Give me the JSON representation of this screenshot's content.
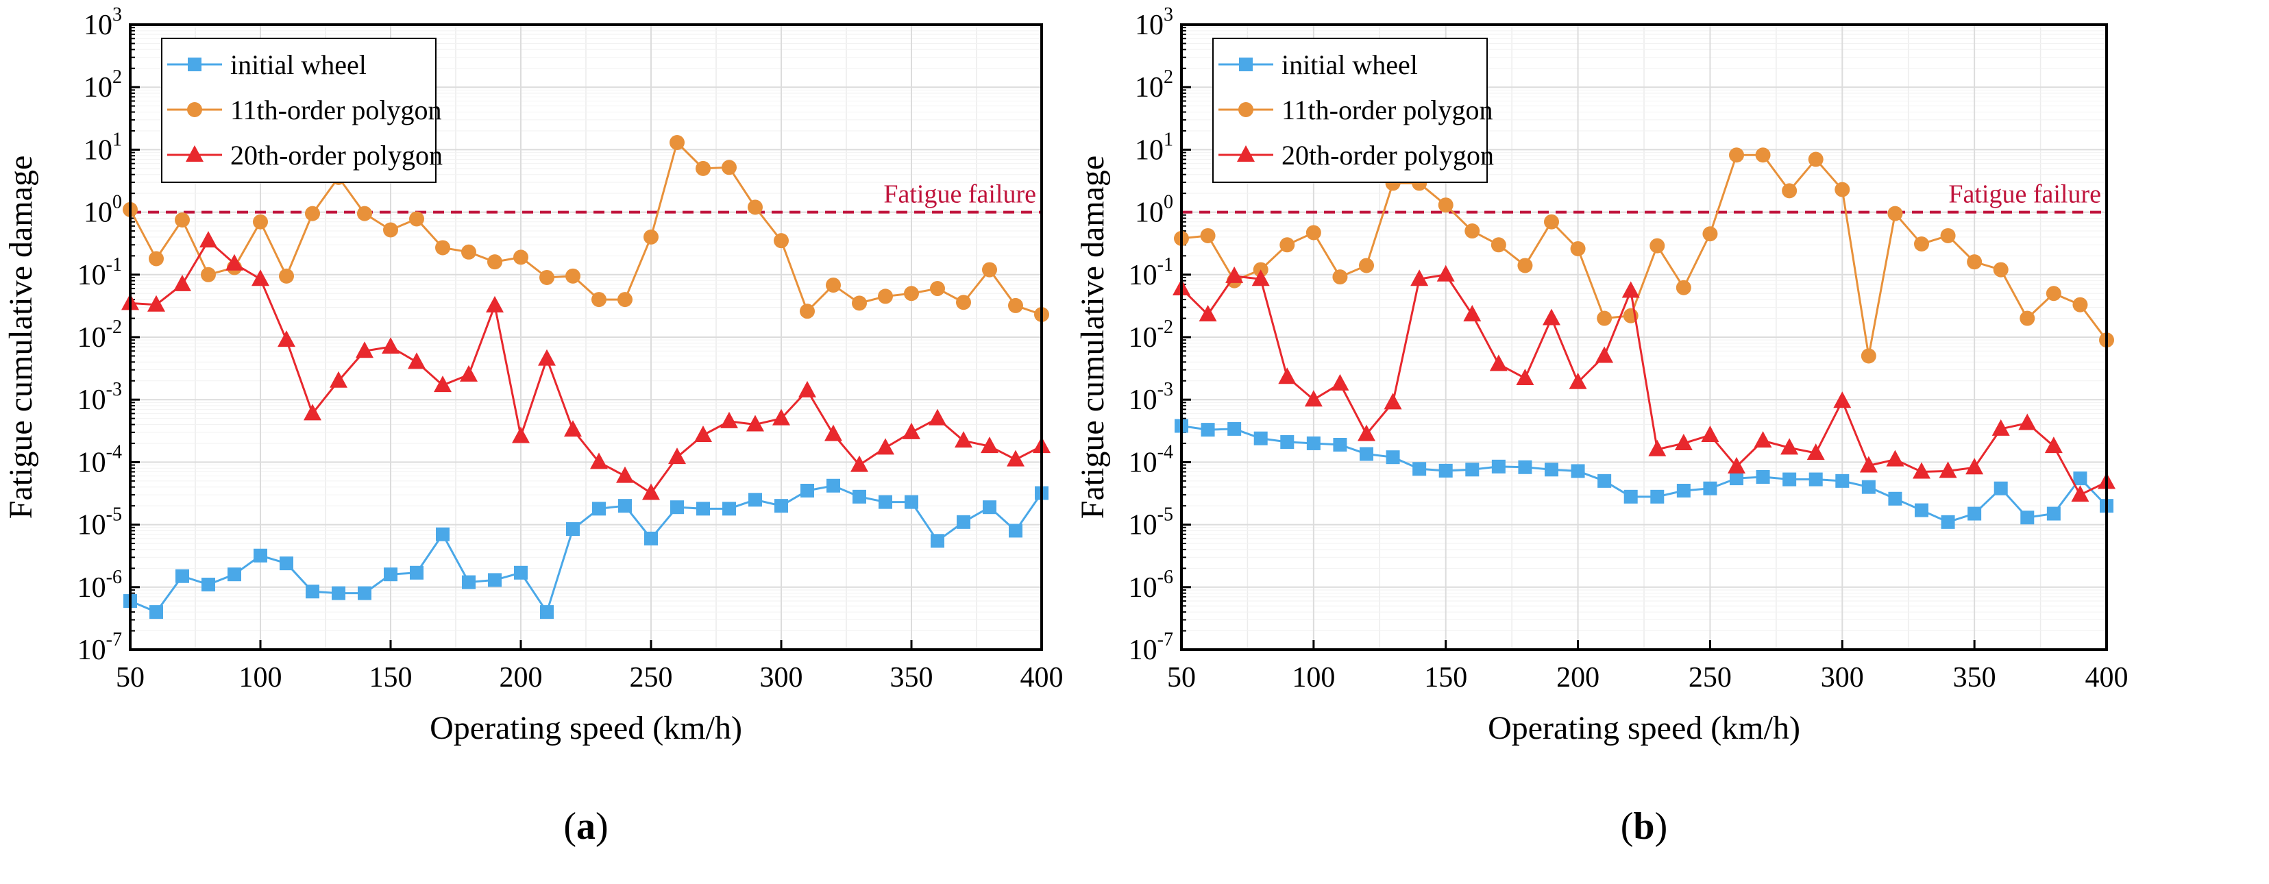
{
  "chart_data": [
    {
      "type": "line",
      "panel_label": "a",
      "xlabel": "Operating speed (km/h)",
      "ylabel": "Fatigue cumulative damage",
      "xlim": [
        50,
        400
      ],
      "ylim": [
        1e-07,
        1000
      ],
      "yscale": "log",
      "grid": true,
      "legend_position": "top-left",
      "x_ticks": [
        50,
        100,
        150,
        200,
        250,
        300,
        350,
        400
      ],
      "y_ticks": [
        -7,
        -6,
        -5,
        -4,
        -3,
        -2,
        -1,
        0,
        1,
        2,
        3
      ],
      "threshold": {
        "value": 1,
        "label": "Fatigue failure",
        "color": "#c0143c"
      },
      "x": [
        50,
        60,
        70,
        80,
        90,
        100,
        110,
        120,
        130,
        140,
        150,
        160,
        170,
        180,
        190,
        200,
        210,
        220,
        230,
        240,
        250,
        260,
        270,
        280,
        290,
        300,
        310,
        320,
        330,
        340,
        350,
        360,
        370,
        380,
        390,
        400
      ],
      "series": [
        {
          "name": "initial wheel",
          "marker": "square",
          "color": "#4aa8e8",
          "values": [
            6e-07,
            4e-07,
            1.5e-06,
            1.1e-06,
            1.6e-06,
            3.2e-06,
            2.4e-06,
            8.5e-07,
            8e-07,
            8e-07,
            1.6e-06,
            1.7e-06,
            7e-06,
            1.2e-06,
            1.3e-06,
            1.7e-06,
            4e-07,
            8.5e-06,
            1.8e-05,
            2e-05,
            6e-06,
            1.9e-05,
            1.8e-05,
            1.8e-05,
            2.5e-05,
            2e-05,
            3.5e-05,
            4.2e-05,
            2.8e-05,
            2.3e-05,
            2.3e-05,
            5.5e-06,
            1.1e-05,
            1.9e-05,
            8e-06,
            3.2e-05
          ]
        },
        {
          "name": "11th-order polygon",
          "marker": "circle",
          "color": "#e8913a",
          "values": [
            1.1,
            0.18,
            0.75,
            0.1,
            0.13,
            0.7,
            0.095,
            0.95,
            3.6,
            0.95,
            0.52,
            0.78,
            0.27,
            0.23,
            0.16,
            0.19,
            0.09,
            0.095,
            0.04,
            0.04,
            0.4,
            13,
            5,
            5.2,
            1.2,
            0.35,
            0.026,
            0.068,
            0.035,
            0.045,
            0.05,
            0.06,
            0.036,
            0.12,
            0.032,
            0.023
          ]
        },
        {
          "name": "20th-order polygon",
          "marker": "triangle",
          "color": "#e8282d",
          "values": [
            0.035,
            0.033,
            0.07,
            0.35,
            0.15,
            0.085,
            0.009,
            0.0006,
            0.002,
            0.006,
            0.007,
            0.004,
            0.0017,
            0.0025,
            0.032,
            0.00026,
            0.0045,
            0.00033,
            0.0001,
            6e-05,
            3.2e-05,
            0.00012,
            0.00027,
            0.00045,
            0.0004,
            0.0005,
            0.0014,
            0.00028,
            9e-05,
            0.00017,
            0.0003,
            0.0005,
            0.00022,
            0.00018,
            0.00011,
            0.00018
          ]
        }
      ]
    },
    {
      "type": "line",
      "panel_label": "b",
      "xlabel": "Operating speed (km/h)",
      "ylabel": "Fatigue cumulative damage",
      "xlim": [
        50,
        400
      ],
      "ylim": [
        1e-07,
        1000
      ],
      "yscale": "log",
      "grid": true,
      "legend_position": "top-left",
      "x_ticks": [
        50,
        100,
        150,
        200,
        250,
        300,
        350,
        400
      ],
      "y_ticks": [
        -7,
        -6,
        -5,
        -4,
        -3,
        -2,
        -1,
        0,
        1,
        2,
        3
      ],
      "threshold": {
        "value": 1,
        "label": "Fatigue failure",
        "color": "#c0143c"
      },
      "x": [
        50,
        60,
        70,
        80,
        90,
        100,
        110,
        120,
        130,
        140,
        150,
        160,
        170,
        180,
        190,
        200,
        210,
        220,
        230,
        240,
        250,
        260,
        270,
        280,
        290,
        300,
        310,
        320,
        330,
        340,
        350,
        360,
        370,
        380,
        390,
        400
      ],
      "series": [
        {
          "name": "initial wheel",
          "marker": "square",
          "color": "#4aa8e8",
          "values": [
            0.00038,
            0.00033,
            0.00034,
            0.00024,
            0.00021,
            0.0002,
            0.00019,
            0.000135,
            0.00012,
            7.8e-05,
            7.3e-05,
            7.6e-05,
            8.5e-05,
            8.3e-05,
            7.6e-05,
            7.2e-05,
            5e-05,
            2.8e-05,
            2.8e-05,
            3.5e-05,
            3.8e-05,
            5.5e-05,
            5.8e-05,
            5.3e-05,
            5.3e-05,
            5e-05,
            4e-05,
            2.6e-05,
            1.7e-05,
            1.1e-05,
            1.5e-05,
            3.8e-05,
            1.3e-05,
            1.5e-05,
            5.5e-05,
            2e-05
          ]
        },
        {
          "name": "11th-order polygon",
          "marker": "circle",
          "color": "#e8913a",
          "values": [
            0.38,
            0.42,
            0.08,
            0.12,
            0.3,
            0.47,
            0.092,
            0.14,
            2.9,
            2.9,
            1.3,
            0.5,
            0.3,
            0.14,
            0.7,
            0.26,
            0.02,
            0.022,
            0.29,
            0.062,
            0.45,
            8.2,
            8.2,
            2.2,
            7,
            2.3,
            0.005,
            0.95,
            0.31,
            0.42,
            0.16,
            0.12,
            0.02,
            0.05,
            0.033,
            0.009
          ]
        },
        {
          "name": "20th-order polygon",
          "marker": "triangle",
          "color": "#e8282d",
          "values": [
            0.06,
            0.023,
            0.095,
            0.085,
            0.0023,
            0.001,
            0.0018,
            0.00028,
            0.0009,
            0.085,
            0.1,
            0.023,
            0.0037,
            0.0022,
            0.02,
            0.0019,
            0.005,
            0.055,
            0.00016,
            0.0002,
            0.00027,
            8.5e-05,
            0.00022,
            0.00017,
            0.00014,
            0.00095,
            8.8e-05,
            0.00011,
            7e-05,
            7.2e-05,
            8.2e-05,
            0.00034,
            0.00042,
            0.00018,
            3e-05,
            4.8e-05
          ]
        }
      ]
    }
  ]
}
